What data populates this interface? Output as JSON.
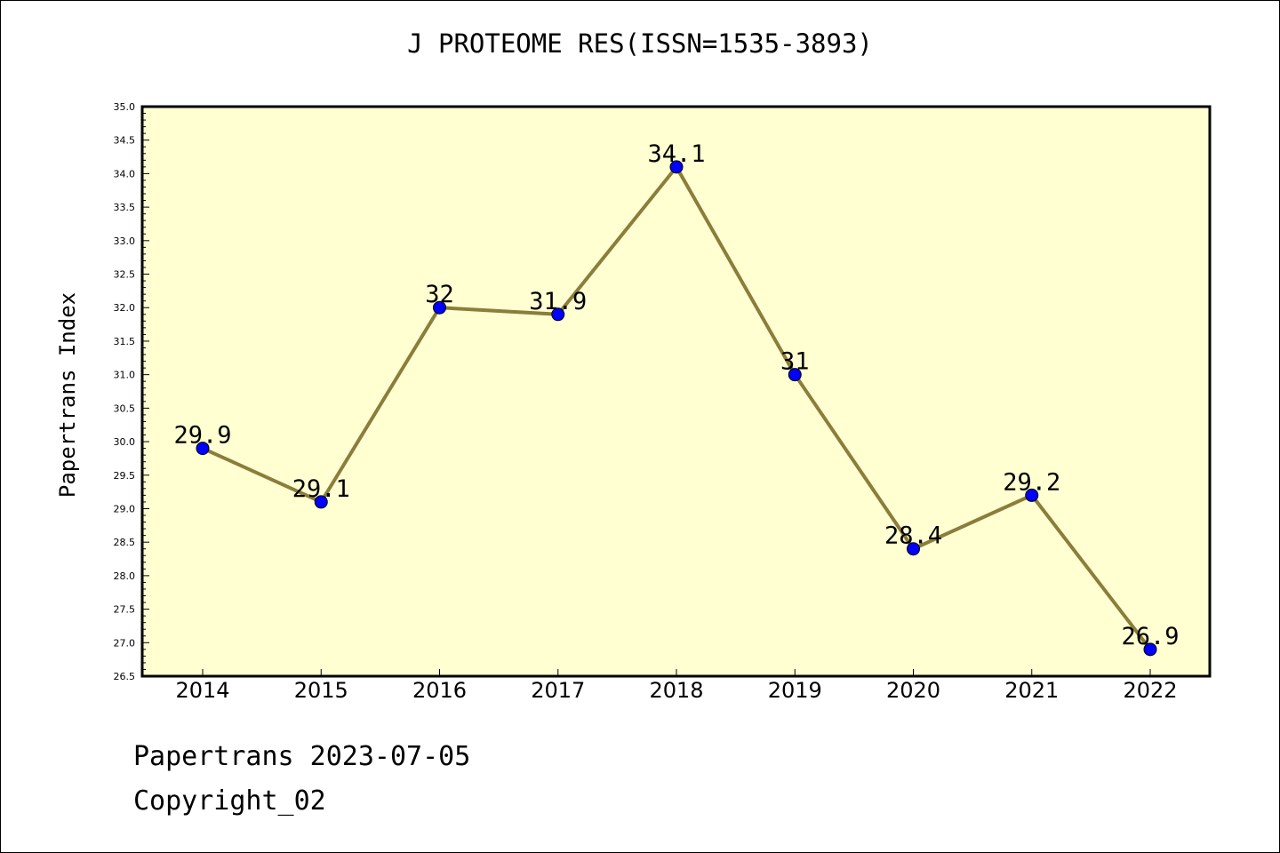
{
  "chart_data": {
    "type": "line",
    "title": "J PROTEOME RES(ISSN=1535-3893)",
    "ylabel": "Papertrans Index",
    "xlabel": "",
    "categories": [
      "2014",
      "2015",
      "2016",
      "2017",
      "2018",
      "2019",
      "2020",
      "2021",
      "2022"
    ],
    "values": [
      29.9,
      29.1,
      32.0,
      31.9,
      34.1,
      31.0,
      28.4,
      29.2,
      26.9
    ],
    "data_labels": [
      "29.9",
      "29.1",
      "32",
      "31.9",
      "34.1",
      "31",
      "28.4",
      "29.2",
      "26.9"
    ],
    "ylim": [
      26.5,
      35.0
    ],
    "yticks": [
      "26.5",
      "27.0",
      "27.5",
      "28.0",
      "28.5",
      "29.0",
      "29.5",
      "30.0",
      "30.5",
      "31.0",
      "31.5",
      "32.0",
      "32.5",
      "33.0",
      "33.5",
      "34.0",
      "34.5",
      "35.0"
    ],
    "grid": false,
    "colors": {
      "plot_background": "#ffffd2",
      "line": "#8b7d3a",
      "marker": "#0000ff"
    }
  },
  "footer": {
    "date_line": "Papertrans 2023-07-05",
    "copyright": "Copyright_02"
  }
}
